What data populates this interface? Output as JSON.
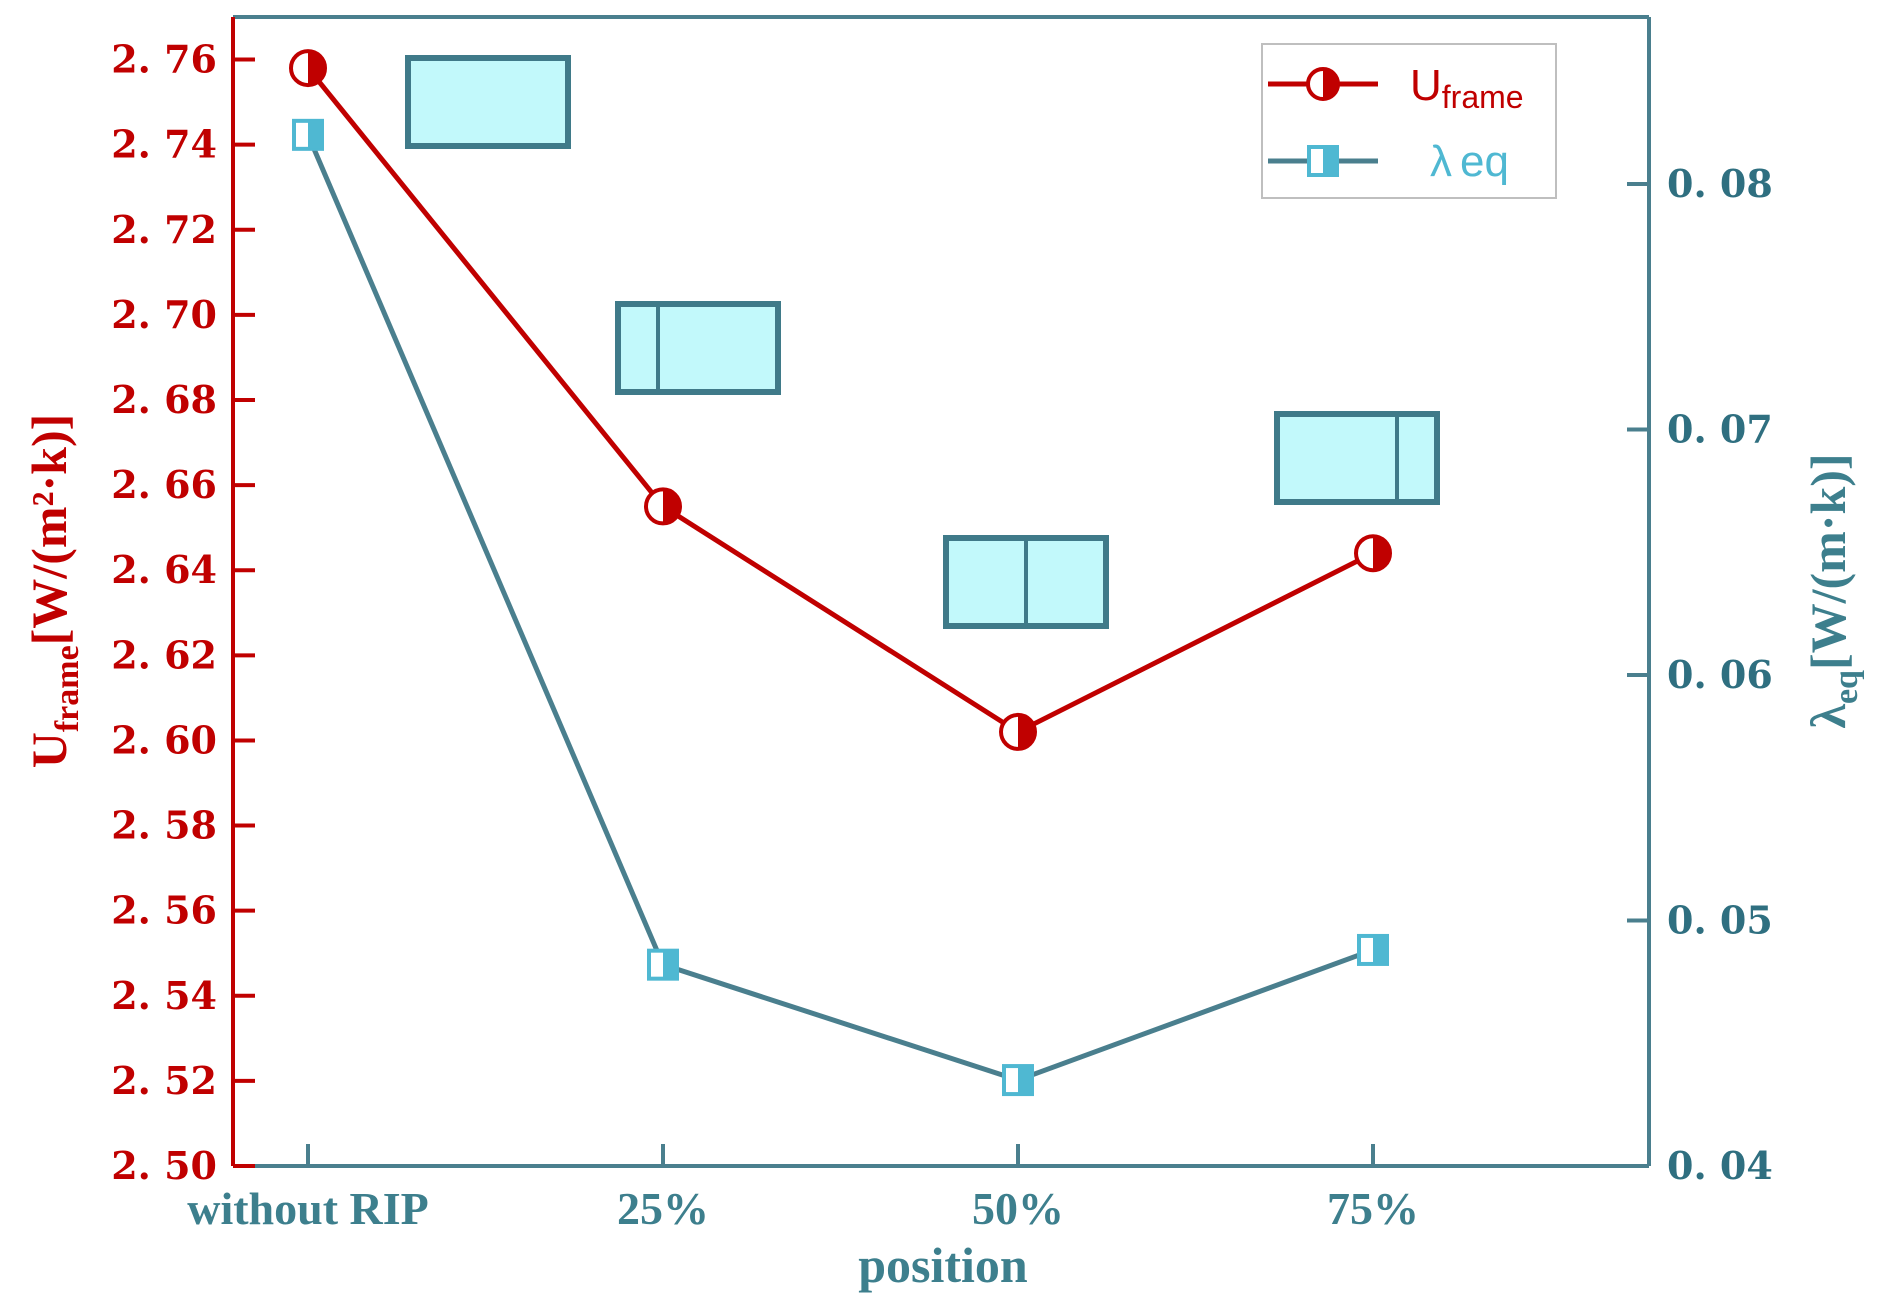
{
  "chart_data": {
    "type": "line",
    "categories": [
      "without RIP",
      "25%",
      "50%",
      "75%"
    ],
    "xlabel": "position",
    "series": [
      {
        "name": "U_frame",
        "axis": "left",
        "values": [
          2.758,
          2.655,
          2.602,
          2.644
        ],
        "color": "#c00000",
        "marker": "half-filled-circle"
      },
      {
        "name": "λeq",
        "axis": "right",
        "values": [
          0.082,
          0.0482,
          0.0435,
          0.0488
        ],
        "color": "#4a7f8e",
        "marker_color": "#4fb8d2",
        "marker": "half-filled-square"
      }
    ],
    "left_axis": {
      "label_main": "U",
      "label_sub": "frame",
      "label_unit": "[W/(m²·k)]",
      "ylim": [
        2.5,
        2.77
      ],
      "ticks": [
        2.5,
        2.52,
        2.54,
        2.56,
        2.58,
        2.6,
        2.62,
        2.64,
        2.66,
        2.68,
        2.7,
        2.72,
        2.74,
        2.76
      ],
      "tick_labels": [
        "2. 50",
        "2. 52",
        "2. 54",
        "2. 56",
        "2. 58",
        "2. 60",
        "2. 62",
        "2. 64",
        "2. 66",
        "2. 68",
        "2. 70",
        "2. 72",
        "2. 74",
        "2. 76"
      ],
      "color": "#c00000"
    },
    "right_axis": {
      "label_main": "λ",
      "label_sub": "eq",
      "label_unit": "[W/(m·k)]",
      "ylim": [
        0.04,
        0.0868
      ],
      "ticks": [
        0.04,
        0.05,
        0.06,
        0.07,
        0.08
      ],
      "tick_labels": [
        "0. 04",
        "0. 05",
        "0. 06",
        "0. 07",
        "0. 08"
      ],
      "color": "#4a7f8e"
    },
    "legend": {
      "position": "top-right",
      "entries": [
        {
          "main": "U",
          "sub": "frame"
        },
        {
          "main": "λ",
          "sub": "eq"
        }
      ]
    },
    "annotations": [
      {
        "category": "without RIP",
        "divider": "none"
      },
      {
        "category": "25%",
        "divider": 0.25
      },
      {
        "category": "50%",
        "divider": 0.5
      },
      {
        "category": "75%",
        "divider": 0.75
      }
    ],
    "colors": {
      "frame": "#4a7f8e",
      "box_fill": "#c2f9fb",
      "box_stroke": "#3f7a89"
    }
  }
}
